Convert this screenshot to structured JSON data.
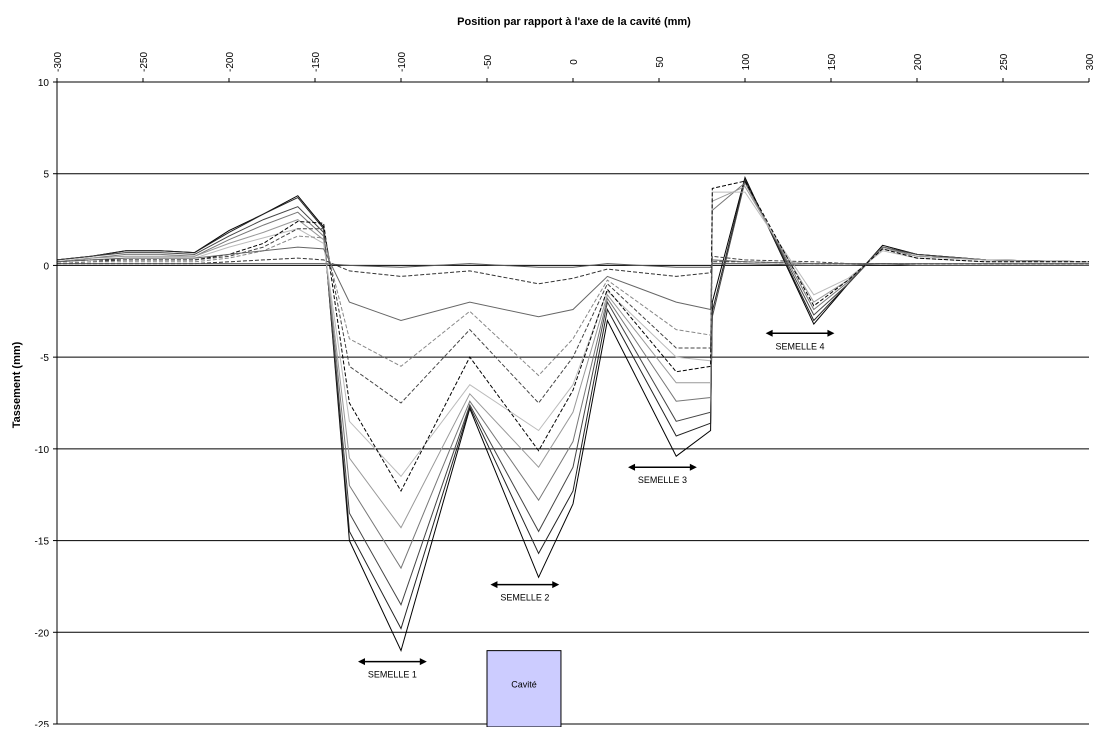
{
  "chart_data": {
    "type": "line",
    "title": "",
    "xlabel": "Position par rapport à l'axe de la cavité (mm)",
    "ylabel": "Tassement (mm)",
    "xlim": [
      -300,
      300
    ],
    "ylim": [
      -25,
      10
    ],
    "x_ticks": [
      "-300",
      "-250",
      "-200",
      "-150",
      "-100",
      "-50",
      "0",
      "50",
      "100",
      "150",
      "200",
      "250",
      "300"
    ],
    "y_ticks": [
      "10",
      "5",
      "0",
      "-5",
      "-10",
      "-15",
      "-20",
      "-25"
    ],
    "gridlines": "horizontal",
    "x": [
      -300,
      -280,
      -260,
      -240,
      -220,
      -200,
      -180,
      -160,
      -145,
      -130,
      -100,
      -60,
      -20,
      0,
      20,
      60,
      80,
      81,
      100,
      140,
      160,
      180,
      200,
      240,
      300
    ],
    "series": [
      {
        "style": "solid",
        "color": "#000000",
        "values": [
          0.3,
          0.5,
          0.8,
          0.8,
          0.7,
          1.9,
          2.8,
          3.8,
          2.1,
          -15.0,
          -21.0,
          -7.8,
          -17.0,
          -13.0,
          -3.0,
          -10.4,
          -9.0,
          -2.0,
          4.8,
          -3.2,
          -1.0,
          1.1,
          0.6,
          0.3,
          0.2
        ]
      },
      {
        "style": "solid",
        "color": "#222222",
        "values": [
          0.3,
          0.5,
          0.8,
          0.8,
          0.7,
          1.8,
          2.8,
          3.7,
          2.0,
          -14.5,
          -19.8,
          -7.7,
          -15.7,
          -12.3,
          -2.4,
          -9.3,
          -8.6,
          -2.5,
          4.7,
          -3.0,
          -1.0,
          1.0,
          0.6,
          0.3,
          0.2
        ]
      },
      {
        "style": "solid",
        "color": "#444444",
        "values": [
          0.3,
          0.5,
          0.7,
          0.7,
          0.6,
          1.6,
          2.5,
          3.2,
          1.8,
          -13.5,
          -18.5,
          -7.6,
          -14.5,
          -11.0,
          -2.0,
          -8.5,
          -8.0,
          -2.8,
          4.6,
          -2.7,
          -1.0,
          1.0,
          0.6,
          0.3,
          0.2
        ]
      },
      {
        "style": "solid",
        "color": "#777777",
        "values": [
          0.2,
          0.4,
          0.6,
          0.6,
          0.5,
          1.4,
          2.2,
          2.9,
          1.6,
          -12.0,
          -16.5,
          -7.4,
          -12.8,
          -9.6,
          -1.8,
          -7.4,
          -7.2,
          3.0,
          4.5,
          -2.4,
          -0.9,
          1.0,
          0.5,
          0.3,
          0.2
        ]
      },
      {
        "style": "solid",
        "color": "#999999",
        "values": [
          0.2,
          0.4,
          0.5,
          0.5,
          0.5,
          1.2,
          1.8,
          2.5,
          1.4,
          -10.5,
          -14.3,
          -7.0,
          -11.0,
          -8.0,
          -1.6,
          -6.4,
          -6.4,
          3.5,
          4.3,
          -2.0,
          -0.8,
          0.9,
          0.5,
          0.3,
          0.2
        ]
      },
      {
        "style": "solid",
        "color": "#bbbbbb",
        "values": [
          0.2,
          0.3,
          0.4,
          0.4,
          0.4,
          1.0,
          1.5,
          2.0,
          1.2,
          -8.5,
          -11.5,
          -6.5,
          -9.0,
          -6.5,
          -1.4,
          -5.0,
          -5.2,
          4.0,
          4.0,
          -1.6,
          -0.7,
          0.8,
          0.4,
          0.2,
          0.2
        ]
      },
      {
        "style": "dashed",
        "color": "#000000",
        "values": [
          0.2,
          0.3,
          0.3,
          0.3,
          0.3,
          0.6,
          1.2,
          2.4,
          2.3,
          -7.5,
          -12.3,
          -5.0,
          -10.1,
          -6.8,
          -1.3,
          -5.8,
          -5.5,
          4.2,
          4.6,
          -2.2,
          -0.8,
          0.9,
          0.4,
          0.2,
          0.2
        ]
      },
      {
        "style": "dashed",
        "color": "#444444",
        "values": [
          0.1,
          0.2,
          0.3,
          0.3,
          0.3,
          0.5,
          1.0,
          2.0,
          2.0,
          -5.5,
          -7.5,
          -3.5,
          -7.5,
          -5.0,
          -1.0,
          -4.5,
          -4.5,
          0.5,
          0.3,
          0.2,
          0.1,
          0.1,
          0.1,
          0.1,
          0.1
        ]
      },
      {
        "style": "dashed",
        "color": "#888888",
        "values": [
          0.1,
          0.2,
          0.2,
          0.2,
          0.2,
          0.4,
          0.8,
          1.6,
          1.5,
          -4.0,
          -5.5,
          -2.5,
          -6.0,
          -4.0,
          -0.8,
          -3.5,
          -3.8,
          0.3,
          0.2,
          0.1,
          0.1,
          0.1,
          0.1,
          0.1,
          0.1
        ]
      },
      {
        "style": "dashed",
        "color": "#333333",
        "values": [
          0.1,
          0.1,
          0.1,
          0.1,
          0.1,
          0.2,
          0.3,
          0.4,
          0.3,
          -0.3,
          -0.6,
          -0.3,
          -1.0,
          -0.7,
          -0.2,
          -0.6,
          -0.4,
          0.2,
          0.2,
          0.1,
          0.1,
          0.1,
          0.1,
          0.1,
          0.1
        ]
      },
      {
        "style": "solid",
        "color": "#666666",
        "values": [
          0.2,
          0.3,
          0.4,
          0.4,
          0.4,
          0.6,
          0.8,
          1.0,
          0.9,
          -2.0,
          -3.0,
          -2.0,
          -2.8,
          -2.4,
          -0.6,
          -2.0,
          -2.4,
          0.3,
          0.2,
          0.1,
          0.1,
          0.1,
          0.1,
          0.1,
          0.1
        ]
      },
      {
        "style": "solid",
        "color": "#555555",
        "values": [
          0.1,
          0.1,
          0.1,
          0.1,
          0.1,
          0.1,
          0.1,
          0.1,
          0.1,
          0.0,
          -0.1,
          0.1,
          -0.1,
          -0.1,
          0.1,
          -0.1,
          -0.1,
          0.1,
          0.1,
          0.0,
          0.0,
          0.1,
          0.0,
          0.0,
          0.0
        ]
      }
    ],
    "annotations": [
      {
        "label": "SEMELLE 1",
        "x1": -125,
        "x2": -85,
        "y": -21.6
      },
      {
        "label": "SEMELLE 2",
        "x1": -48,
        "x2": -8,
        "y": -17.4
      },
      {
        "label": "SEMELLE 3",
        "x1": 32,
        "x2": 72,
        "y": -11.0
      },
      {
        "label": "SEMELLE 4",
        "x1": 112,
        "x2": 152,
        "y": -3.7
      }
    ],
    "cavity": {
      "label": "Cavité",
      "x1": -50,
      "x2": -7,
      "y_top": -21.0,
      "fill": "#ccccff"
    }
  }
}
